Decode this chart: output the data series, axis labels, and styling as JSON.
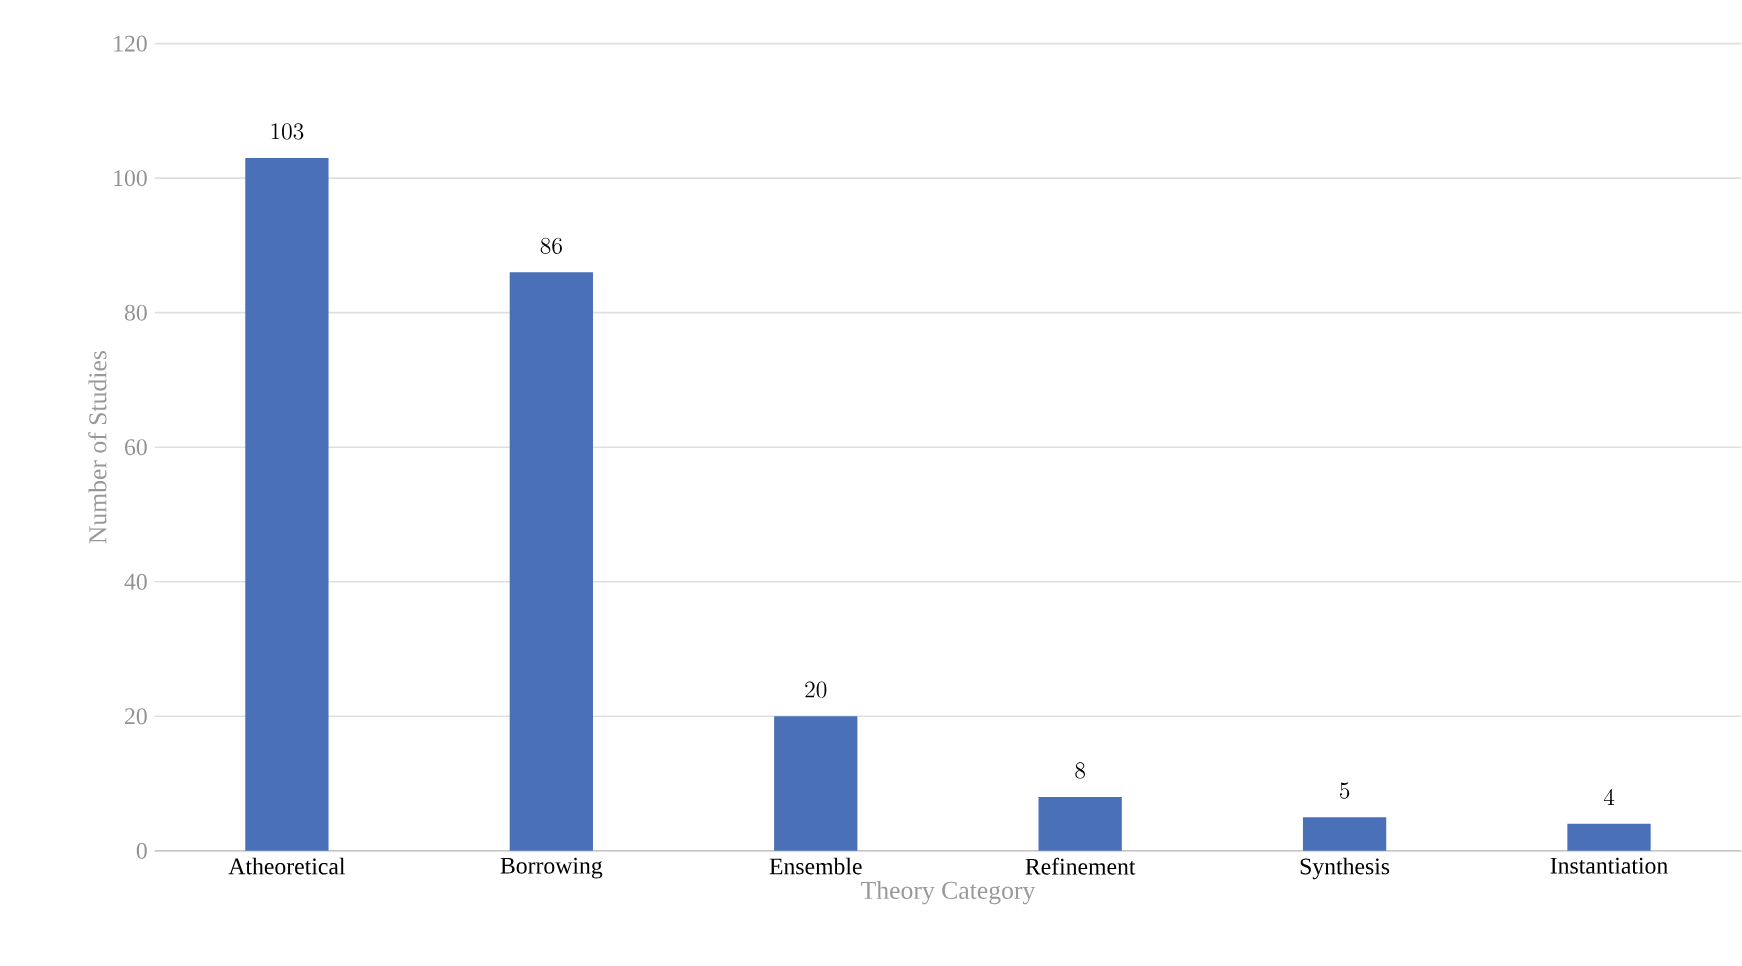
{
  "chart_data": {
    "type": "bar",
    "xlabel": "Theory Category",
    "ylabel": "Number of Studies",
    "categories": [
      "Atheoretical",
      "Borrowing",
      "Ensemble",
      "Refinement",
      "Synthesis",
      "Instantiation"
    ],
    "values": [
      103,
      86,
      20,
      8,
      5,
      4
    ],
    "color": "#4a70b8",
    "ylim": [
      0,
      120
    ],
    "yticks": [
      0,
      20,
      40,
      60,
      80,
      100,
      120
    ],
    "grid": "y",
    "data_labels": true
  }
}
